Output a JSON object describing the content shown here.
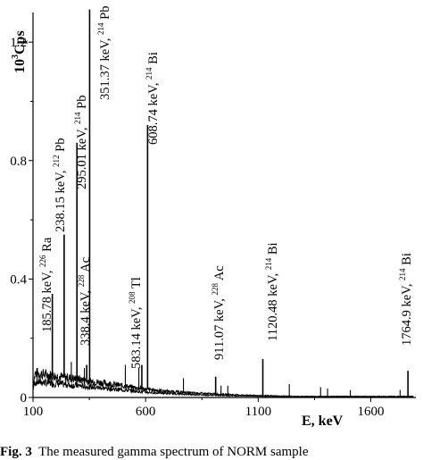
{
  "chart_data": {
    "type": "line",
    "title": "",
    "xlabel": "E, keV",
    "ylabel_base": "10",
    "ylabel_exp": "3",
    "ylabel_unit": "Cps",
    "xlim": [
      100,
      1800
    ],
    "ylim": [
      0,
      1.3
    ],
    "xticks": [
      100,
      600,
      1100,
      1600
    ],
    "yticks": [
      0,
      0.4,
      0.8,
      1.2
    ],
    "grid": false,
    "peaks": [
      {
        "energy": 185.78,
        "height": 0.35,
        "label": "185.78 keV, ",
        "iso_mass": "226",
        "iso_elem": "Ra"
      },
      {
        "energy": 238.15,
        "height": 0.55,
        "label": "238.15 keV, ",
        "iso_mass": "212",
        "iso_elem": "Pb"
      },
      {
        "energy": 295.01,
        "height": 0.86,
        "label": "295.01 keV, ",
        "iso_mass": "214",
        "iso_elem": "Pb"
      },
      {
        "energy": 338.4,
        "height": 0.11,
        "label": "338.4 keV, ",
        "iso_mass": "228",
        "iso_elem": "Ac"
      },
      {
        "energy": 351.37,
        "height": 1.31,
        "label": "351.37 keV, ",
        "iso_mass": "214",
        "iso_elem": "Pb"
      },
      {
        "energy": 583.14,
        "height": 0.11,
        "label": "583.14 keV, ",
        "iso_mass": "208",
        "iso_elem": "Tl"
      },
      {
        "energy": 608.74,
        "height": 0.92,
        "label": "608.74 keV, ",
        "iso_mass": "214",
        "iso_elem": "Bi"
      },
      {
        "energy": 911.07,
        "height": 0.07,
        "label": "911.07 keV, ",
        "iso_mass": "228",
        "iso_elem": "Ac"
      },
      {
        "energy": 1120.48,
        "height": 0.13,
        "label": "1120.48 keV, ",
        "iso_mass": "214",
        "iso_elem": "Bi"
      },
      {
        "energy": 1764.9,
        "height": 0.09,
        "label": "1764.9 keV, ",
        "iso_mass": "214",
        "iso_elem": "Bi"
      }
    ],
    "minor_peaks": [
      {
        "energy": 270,
        "height": 0.12
      },
      {
        "energy": 328,
        "height": 0.1
      },
      {
        "energy": 510,
        "height": 0.11
      },
      {
        "energy": 570,
        "height": 0.1
      },
      {
        "energy": 768,
        "height": 0.065
      },
      {
        "energy": 935,
        "height": 0.04
      },
      {
        "energy": 965,
        "height": 0.04
      },
      {
        "energy": 1238,
        "height": 0.045
      },
      {
        "energy": 1377,
        "height": 0.035
      },
      {
        "energy": 1408,
        "height": 0.03
      },
      {
        "energy": 1509,
        "height": 0.025
      },
      {
        "energy": 1730,
        "height": 0.025
      }
    ]
  },
  "caption": {
    "label": "Fig. 3",
    "text": "The measured gamma spectrum of NORM sample"
  }
}
